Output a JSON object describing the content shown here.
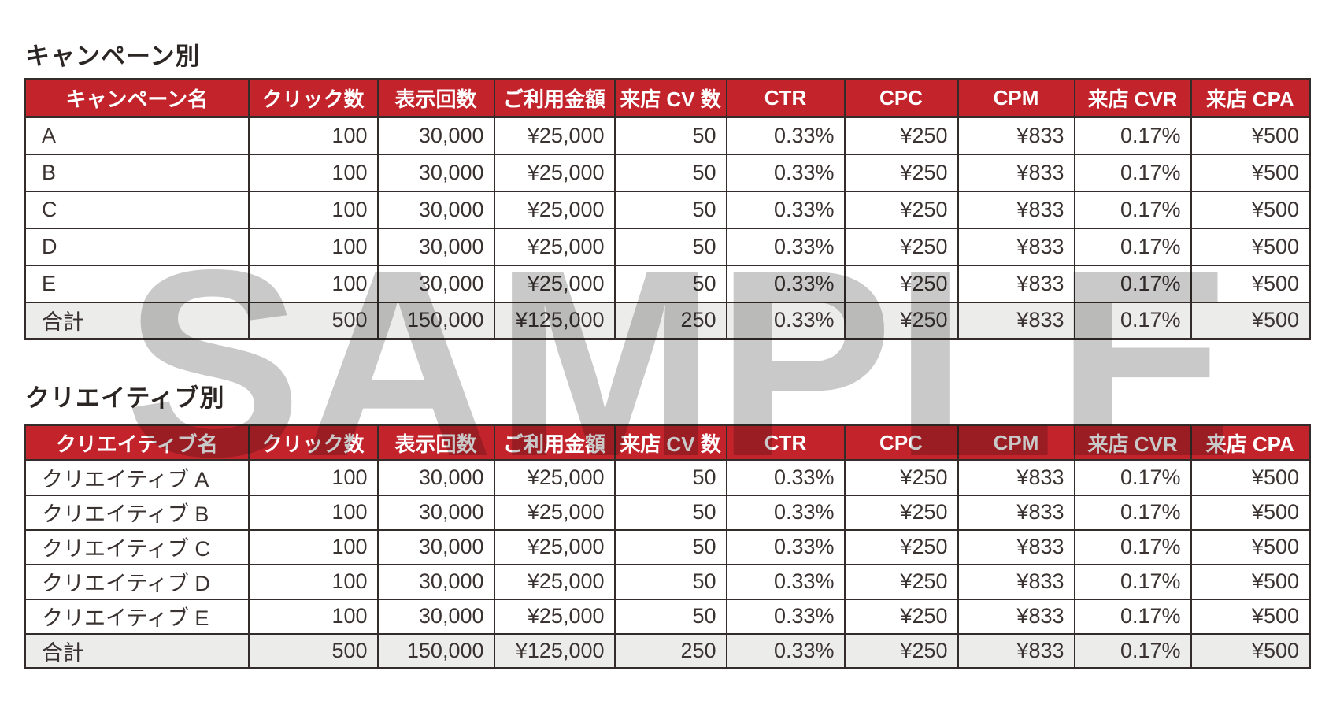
{
  "watermark": "SAMPLE",
  "colors": {
    "header_red": "#c3242c",
    "border_dark": "#342c2a",
    "text_dark": "#3a3230",
    "total_row_bg": "#ececeb",
    "watermark_gray": "#c9c9c9"
  },
  "tables": [
    {
      "title": "キャンペーン別",
      "headers": [
        "キャンペーン名",
        "クリック数",
        "表示回数",
        "ご利用金額",
        "来店 CV 数",
        "CTR",
        "CPC",
        "CPM",
        "来店 CVR",
        "来店 CPA"
      ],
      "rows": [
        {
          "name": "A",
          "values": [
            "100",
            "30,000",
            "¥25,000",
            "50",
            "0.33%",
            "¥250",
            "¥833",
            "0.17%",
            "¥500"
          ]
        },
        {
          "name": "B",
          "values": [
            "100",
            "30,000",
            "¥25,000",
            "50",
            "0.33%",
            "¥250",
            "¥833",
            "0.17%",
            "¥500"
          ]
        },
        {
          "name": "C",
          "values": [
            "100",
            "30,000",
            "¥25,000",
            "50",
            "0.33%",
            "¥250",
            "¥833",
            "0.17%",
            "¥500"
          ]
        },
        {
          "name": "D",
          "values": [
            "100",
            "30,000",
            "¥25,000",
            "50",
            "0.33%",
            "¥250",
            "¥833",
            "0.17%",
            "¥500"
          ]
        },
        {
          "name": "E",
          "values": [
            "100",
            "30,000",
            "¥25,000",
            "50",
            "0.33%",
            "¥250",
            "¥833",
            "0.17%",
            "¥500"
          ]
        }
      ],
      "total": {
        "name": "合計",
        "values": [
          "500",
          "150,000",
          "¥125,000",
          "250",
          "0.33%",
          "¥250",
          "¥833",
          "0.17%",
          "¥500"
        ]
      }
    },
    {
      "title": "クリエイティブ別",
      "headers": [
        "クリエイティブ名",
        "クリック数",
        "表示回数",
        "ご利用金額",
        "来店 CV 数",
        "CTR",
        "CPC",
        "CPM",
        "来店 CVR",
        "来店 CPA"
      ],
      "rows": [
        {
          "name": "クリエイティブ A",
          "values": [
            "100",
            "30,000",
            "¥25,000",
            "50",
            "0.33%",
            "¥250",
            "¥833",
            "0.17%",
            "¥500"
          ]
        },
        {
          "name": "クリエイティブ B",
          "values": [
            "100",
            "30,000",
            "¥25,000",
            "50",
            "0.33%",
            "¥250",
            "¥833",
            "0.17%",
            "¥500"
          ]
        },
        {
          "name": "クリエイティブ C",
          "values": [
            "100",
            "30,000",
            "¥25,000",
            "50",
            "0.33%",
            "¥250",
            "¥833",
            "0.17%",
            "¥500"
          ]
        },
        {
          "name": "クリエイティブ D",
          "values": [
            "100",
            "30,000",
            "¥25,000",
            "50",
            "0.33%",
            "¥250",
            "¥833",
            "0.17%",
            "¥500"
          ]
        },
        {
          "name": "クリエイティブ E",
          "values": [
            "100",
            "30,000",
            "¥25,000",
            "50",
            "0.33%",
            "¥250",
            "¥833",
            "0.17%",
            "¥500"
          ]
        }
      ],
      "total": {
        "name": "合計",
        "values": [
          "500",
          "150,000",
          "¥125,000",
          "250",
          "0.33%",
          "¥250",
          "¥833",
          "0.17%",
          "¥500"
        ]
      }
    }
  ]
}
